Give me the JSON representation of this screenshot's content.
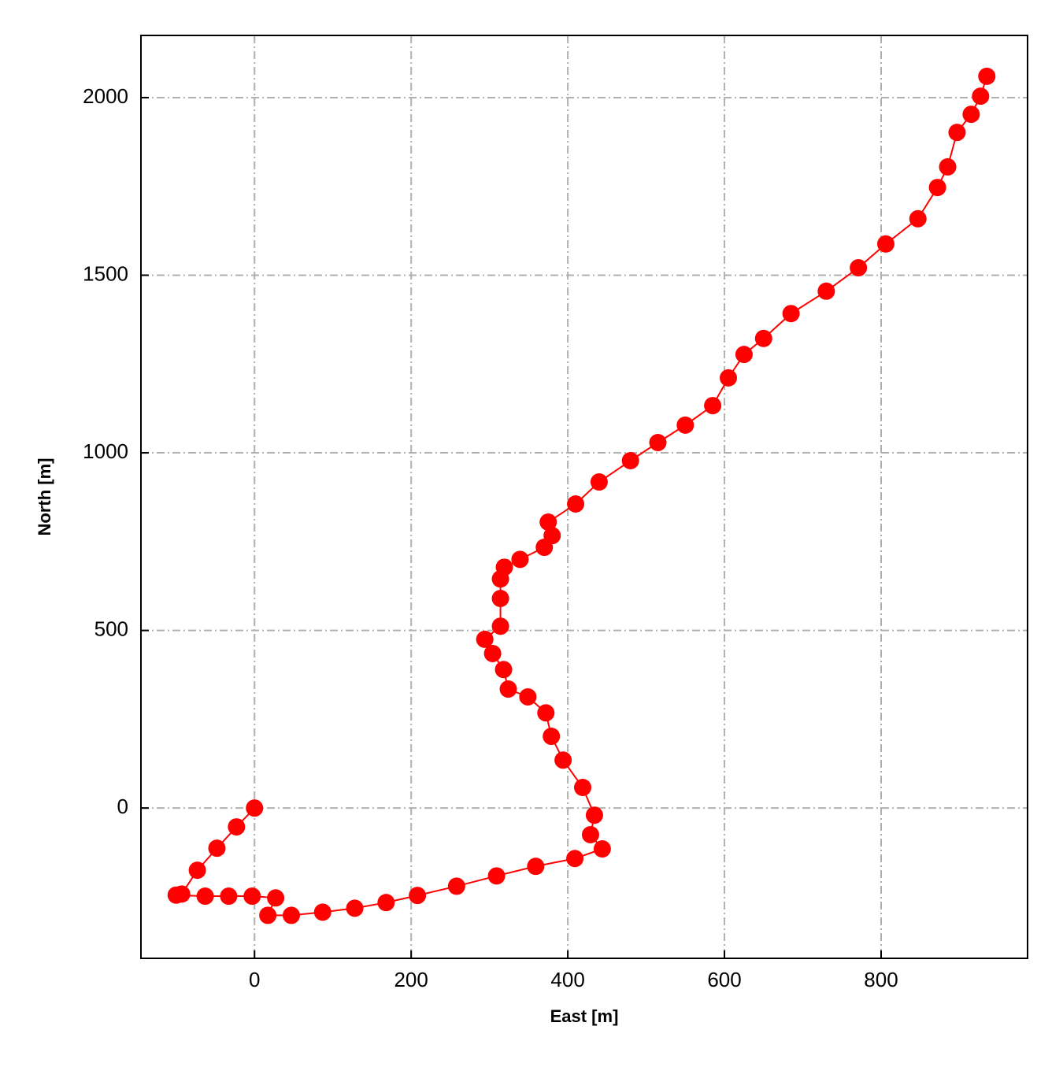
{
  "chart_data": {
    "type": "line",
    "xlabel": "East [m]",
    "ylabel": "North [m]",
    "x": [
      0,
      -23,
      -48,
      -73,
      -93,
      -100,
      -63,
      -33,
      -3,
      27,
      17,
      47,
      87,
      128,
      168,
      208,
      258,
      309,
      359,
      409,
      444,
      429,
      434,
      419,
      394,
      379,
      372,
      349,
      324,
      318,
      304,
      294,
      314,
      314,
      314,
      319,
      339,
      370,
      380,
      375,
      410,
      440,
      480,
      515,
      550,
      585,
      605,
      625,
      650,
      685,
      730,
      771,
      806,
      847,
      872,
      885,
      897,
      915,
      927,
      935
    ],
    "values": [
      0,
      -53,
      -113,
      -175,
      -242,
      -245,
      -248,
      -248,
      -248,
      -253,
      -302,
      -302,
      -293,
      -282,
      -266,
      -246,
      -220,
      -191,
      -164,
      -142,
      -115,
      -75,
      -20,
      58,
      135,
      202,
      268,
      313,
      335,
      390,
      435,
      475,
      512,
      590,
      645,
      678,
      700,
      734,
      767,
      805,
      856,
      918,
      978,
      1029,
      1078,
      1133,
      1211,
      1277,
      1322,
      1392,
      1455,
      1521,
      1588,
      1659,
      1747,
      1805,
      1902,
      1953,
      2004,
      2060
    ],
    "color": "#ff0000",
    "marker": true,
    "xlim": [
      -145,
      987
    ],
    "ylim": [
      -423,
      2175
    ],
    "xticks": [
      0,
      200,
      400,
      600,
      800
    ],
    "yticks": [
      0,
      500,
      1000,
      1500,
      2000
    ],
    "grid": true
  }
}
